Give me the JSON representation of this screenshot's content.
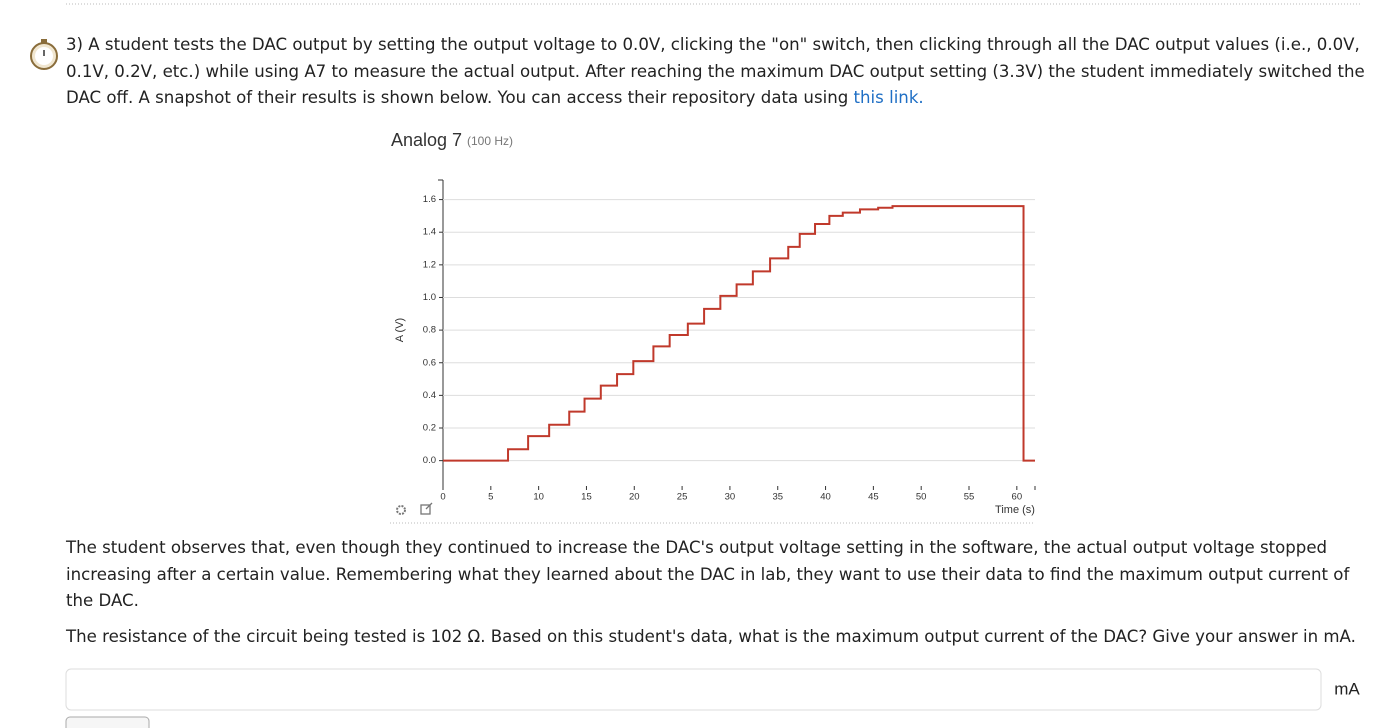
{
  "question": {
    "text": "3) A student tests the DAC output by setting the output voltage to 0.0V, clicking the \"on\" switch, then clicking through all the DAC output values (i.e., 0.0V, 0.1V, 0.2V, etc.) while using A7 to measure the actual output. After reaching the maximum DAC output setting (3.3V) the student immediately switched the DAC off. A snapshot of their results is shown below. You can access their repository data using ",
    "link": "this link."
  },
  "paragraphs": [
    "The student observes that, even though they continued to increase the DAC's output voltage setting in the software, the actual output voltage stopped increasing after a certain value. Remembering what they learned about the DAC in lab, they want to use their data to find the maximum output current of the DAC.",
    "The resistance of the circuit being tested is 102 Ω. Based on this student's data, what is the maximum output current of the DAC? Give your answer in mA."
  ],
  "answer_unit": "mA",
  "chart_data": {
    "type": "line",
    "title": "Analog 7",
    "subtitle": "(100 Hz)",
    "x_label": "Time (s)",
    "y_label": "A (V)",
    "x": [
      0,
      6.8,
      6.8,
      8.9,
      8.9,
      11.1,
      11.1,
      13.2,
      13.2,
      14.8,
      14.8,
      16.5,
      16.5,
      18.2,
      18.2,
      19.9,
      19.9,
      22.0,
      22.0,
      23.7,
      23.7,
      25.6,
      25.6,
      27.3,
      27.3,
      29.0,
      29.0,
      30.7,
      30.7,
      32.4,
      32.4,
      34.2,
      34.2,
      36.1,
      36.1,
      37.3,
      37.3,
      38.9,
      38.9,
      40.4,
      40.4,
      41.8,
      41.8,
      43.6,
      43.6,
      45.5,
      45.5,
      47.0,
      47.0,
      60.7,
      60.7,
      61.9
    ],
    "series": [
      {
        "color": "#c0392b",
        "values": [
          0,
          0,
          0.07,
          0.07,
          0.15,
          0.15,
          0.22,
          0.22,
          0.3,
          0.3,
          0.38,
          0.38,
          0.46,
          0.46,
          0.53,
          0.53,
          0.61,
          0.61,
          0.7,
          0.7,
          0.77,
          0.77,
          0.84,
          0.84,
          0.93,
          0.93,
          1.01,
          1.01,
          1.08,
          1.08,
          1.16,
          1.16,
          1.24,
          1.24,
          1.31,
          1.31,
          1.39,
          1.39,
          1.45,
          1.45,
          1.5,
          1.5,
          1.52,
          1.52,
          1.54,
          1.54,
          1.55,
          1.55,
          1.56,
          1.56,
          0,
          0
        ]
      }
    ],
    "xlim": [
      0,
      61.9
    ],
    "ylim": [
      -0.18,
      1.72
    ],
    "xticks": [
      0,
      5,
      10,
      15,
      20,
      25,
      30,
      35,
      40,
      45,
      50,
      55,
      60
    ],
    "yticks": [
      {
        "value": 0,
        "label": "0.0"
      },
      0.2,
      0.4,
      0.6,
      0.8,
      {
        "value": 1,
        "label": "1.0"
      },
      1.2,
      1.4,
      1.6
    ],
    "grid": true
  }
}
